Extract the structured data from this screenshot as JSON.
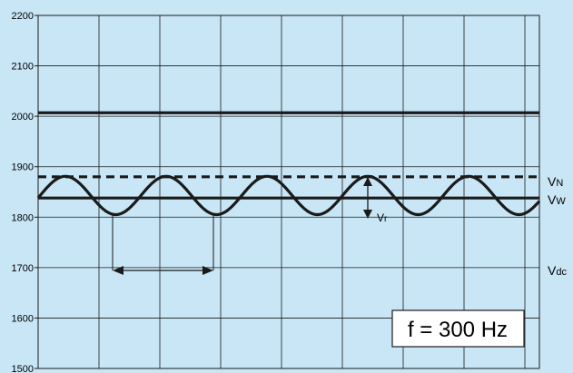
{
  "chart_data": {
    "type": "line",
    "title": "",
    "xlabel": "",
    "ylabel": "",
    "ylim": [
      1500,
      2200
    ],
    "yticks": [
      "2200",
      "2100",
      "2000",
      "1900",
      "1800",
      "1700",
      "1600",
      "1500"
    ],
    "grid": true,
    "series": [
      {
        "name": "",
        "style": "solid-thick",
        "level": 2007
      },
      {
        "name": "VN",
        "style": "dashed",
        "level": 1880
      },
      {
        "name": "VW",
        "style": "solid-thick",
        "level": 1838
      },
      {
        "name": "",
        "style": "sine",
        "center": 1843,
        "amplitude": 38,
        "frequency_hz": 300
      }
    ],
    "annotations": {
      "vn": {
        "main": "V",
        "sub": "N"
      },
      "vw": {
        "main": "V",
        "sub": "W"
      },
      "vr": {
        "main": "V",
        "sub": "r"
      },
      "vdc": {
        "main": "V",
        "sub": "dc"
      },
      "frequency_box": "f = 300 Hz"
    },
    "colors": {
      "background": "#c9e6f6",
      "lines": "#1a1a1a",
      "grid": "#1a1a1a"
    }
  }
}
